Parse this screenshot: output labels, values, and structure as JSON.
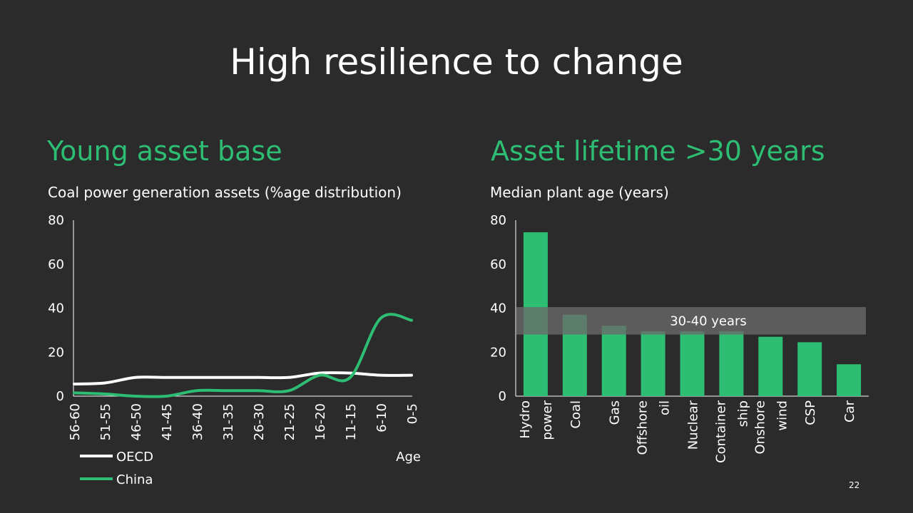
{
  "slide": {
    "title": "High resilience to change",
    "page_number": "22"
  },
  "left": {
    "heading": "Young asset base",
    "subheading": "Coal power generation assets (%age distribution)"
  },
  "right": {
    "heading": "Asset lifetime >30 years",
    "subheading": "Median plant age (years)"
  },
  "colors": {
    "background": "#2b2b2b",
    "accent": "#2dbd73",
    "oecd": "#ffffff",
    "china": "#2dbd73",
    "band": "#6a6a6a"
  },
  "chart_data": [
    {
      "type": "line",
      "title": "",
      "xlabel": "Age",
      "ylabel": "",
      "ylim": [
        0,
        80
      ],
      "yticks": [
        0,
        20,
        40,
        60,
        80
      ],
      "categories": [
        "56-60",
        "51-55",
        "46-50",
        "41-45",
        "36-40",
        "31-35",
        "26-30",
        "21-25",
        "16-20",
        "11-15",
        "6-10",
        "0-5"
      ],
      "series": [
        {
          "name": "OECD",
          "color": "#ffffff",
          "values": [
            5.5,
            6,
            8.5,
            8.5,
            8.5,
            8.5,
            8.5,
            8.5,
            10.5,
            10.5,
            9.5,
            9.5
          ]
        },
        {
          "name": "China",
          "color": "#2dbd73",
          "values": [
            1.5,
            1,
            0,
            0,
            2.5,
            2.5,
            2.5,
            2.5,
            9.5,
            8.5,
            35.5,
            34.5
          ]
        }
      ],
      "legend": "bottom-left",
      "grid": false
    },
    {
      "type": "bar",
      "title": "",
      "xlabel": "",
      "ylabel": "",
      "ylim": [
        0,
        80
      ],
      "yticks": [
        0,
        20,
        40,
        60,
        80
      ],
      "categories": [
        [
          "Hydro",
          "power"
        ],
        [
          "Coal"
        ],
        [
          "Gas"
        ],
        [
          "Offshore",
          "oil"
        ],
        [
          "Nuclear"
        ],
        [
          "Container",
          "ship"
        ],
        [
          "Onshore",
          "wind"
        ],
        [
          "CSP"
        ],
        [
          "Car"
        ]
      ],
      "values": [
        74.5,
        37,
        32,
        29.5,
        29.5,
        29.5,
        27,
        24.5,
        14.5
      ],
      "band": {
        "from": 28,
        "to": 40.5,
        "label": "30-40 years"
      },
      "grid": false
    }
  ]
}
